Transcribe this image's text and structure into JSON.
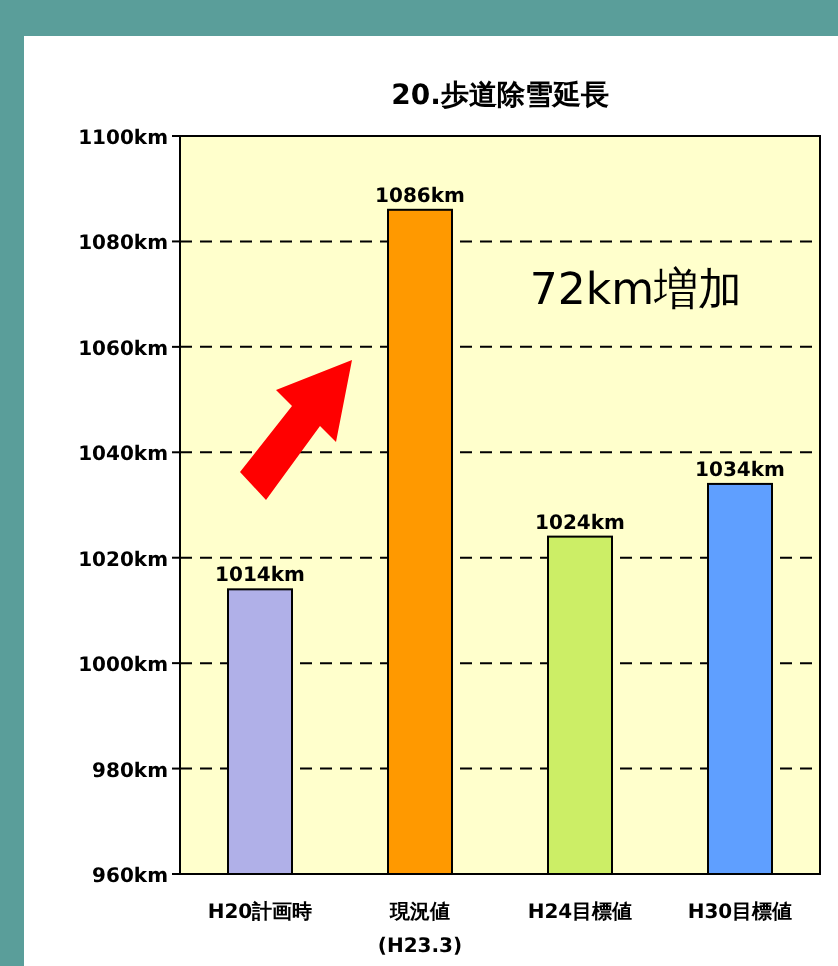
{
  "chart_data": {
    "type": "bar",
    "title": "20.歩道除雪延長",
    "categories": [
      "H20計画時",
      "現況値\n(H23.3)",
      "H24目標値",
      "H30目標値"
    ],
    "values": [
      1014,
      1086,
      1024,
      1034
    ],
    "colors": [
      "#b0b0e8",
      "#ff9900",
      "#ccee66",
      "#5f9fff"
    ],
    "value_labels": [
      "1014km",
      "1086km",
      "1024km",
      "1034km"
    ],
    "ylim": [
      960,
      1100
    ],
    "yticks": [
      {
        "value": 960,
        "label": "960km"
      },
      {
        "value": 980,
        "label": "980km"
      },
      {
        "value": 1000,
        "label": "1000km"
      },
      {
        "value": 1020,
        "label": "1020km"
      },
      {
        "value": 1040,
        "label": "1040km"
      },
      {
        "value": 1060,
        "label": "1060km"
      },
      {
        "value": 1080,
        "label": "1080km"
      },
      {
        "value": 1100,
        "label": "1100km"
      }
    ],
    "grid": "y",
    "annotations": [
      "72km増加"
    ]
  }
}
